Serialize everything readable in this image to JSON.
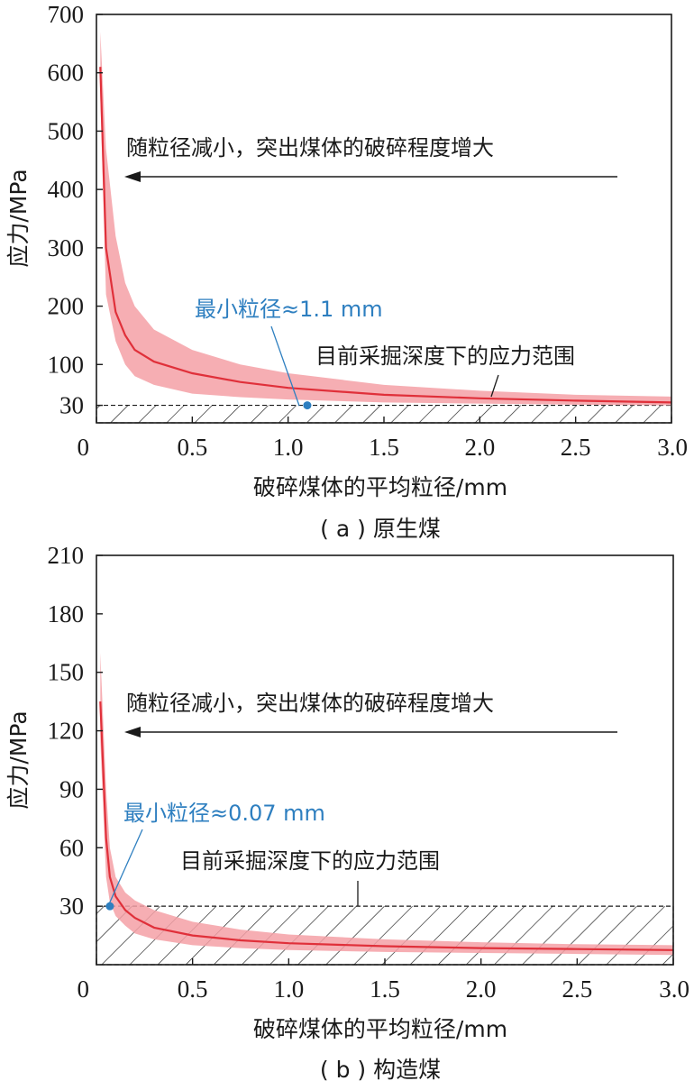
{
  "chart_data": [
    {
      "type": "area",
      "xlabel": "破碎煤体的平均粒径/mm",
      "ylabel": "应力/MPa",
      "caption": "( a ) 原生煤",
      "xlim": [
        0,
        3.0
      ],
      "ylim": [
        0,
        700
      ],
      "xticks": [
        "0",
        "0.5",
        "1.0",
        "1.5",
        "2.0",
        "2.5",
        "3.0"
      ],
      "xtick_values": [
        0,
        0.5,
        1.0,
        1.5,
        2.0,
        2.5,
        3.0
      ],
      "yticks": [
        "30",
        "100",
        "200",
        "300",
        "400",
        "500",
        "600",
        "700"
      ],
      "ytick_values": [
        30,
        100,
        200,
        300,
        400,
        500,
        600,
        700
      ],
      "hatch_band": [
        0,
        30
      ],
      "arrow_text": "随粒径减小，突出煤体的破碎程度增大",
      "range_text": "目前采掘深度下的应力范围",
      "point_text": "最小粒径≈1.1 mm",
      "point": {
        "x": 1.1,
        "y": 30
      },
      "series": {
        "x": [
          0.02,
          0.05,
          0.1,
          0.15,
          0.2,
          0.3,
          0.5,
          0.75,
          1.0,
          1.5,
          2.0,
          2.5,
          3.0
        ],
        "mid": [
          610,
          300,
          190,
          150,
          125,
          105,
          85,
          70,
          60,
          48,
          42,
          38,
          35
        ],
        "upper": [
          670,
          470,
          320,
          240,
          200,
          160,
          125,
          100,
          85,
          65,
          55,
          48,
          45
        ],
        "lower": [
          560,
          220,
          140,
          100,
          80,
          65,
          50,
          44,
          40,
          35,
          33,
          31,
          30
        ]
      },
      "colors": {
        "line": "#e0303a",
        "band": "#f4a0a6",
        "annotation": "#2e7fc0"
      }
    },
    {
      "type": "area",
      "xlabel": "破碎煤体的平均粒径/mm",
      "ylabel": "应力/MPa",
      "caption": "( b ) 构造煤",
      "xlim": [
        0,
        3.0
      ],
      "ylim": [
        0,
        210
      ],
      "xticks": [
        "0",
        "0.5",
        "1.0",
        "1.5",
        "2.0",
        "2.5",
        "3.0"
      ],
      "xtick_values": [
        0,
        0.5,
        1.0,
        1.5,
        2.0,
        2.5,
        3.0
      ],
      "yticks": [
        "30",
        "60",
        "90",
        "120",
        "150",
        "180",
        "210"
      ],
      "ytick_values": [
        30,
        60,
        90,
        120,
        150,
        180,
        210
      ],
      "hatch_band": [
        0,
        30
      ],
      "arrow_text": "随粒径减小，突出煤体的破碎程度增大",
      "range_text": "目前采掘深度下的应力范围",
      "point_text": "最小粒径≈0.07 mm",
      "point": {
        "x": 0.07,
        "y": 30
      },
      "series": {
        "x": [
          0.02,
          0.05,
          0.07,
          0.1,
          0.15,
          0.2,
          0.3,
          0.5,
          0.75,
          1.0,
          1.5,
          2.0,
          2.5,
          3.0
        ],
        "mid": [
          135,
          65,
          45,
          35,
          28,
          24,
          19,
          15,
          12.5,
          11,
          9.5,
          8.5,
          8,
          7.5
        ],
        "upper": [
          160,
          90,
          60,
          45,
          37,
          33,
          28,
          22,
          18,
          15.5,
          13,
          11.5,
          10.5,
          10
        ],
        "lower": [
          115,
          45,
          32,
          25,
          20,
          16,
          13,
          10,
          8.5,
          7.5,
          6.5,
          6,
          5.5,
          5
        ]
      },
      "colors": {
        "line": "#e0303a",
        "band": "#f4a0a6",
        "annotation": "#2e7fc0"
      }
    }
  ]
}
